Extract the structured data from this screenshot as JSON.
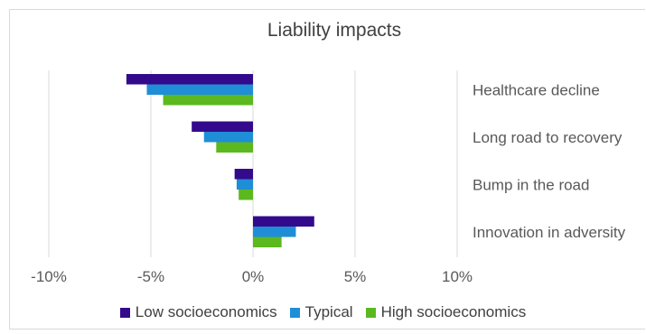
{
  "chart_data": {
    "type": "bar",
    "orientation": "horizontal",
    "title": "Liability impacts",
    "categories": [
      "Healthcare decline",
      "Long road to recovery",
      "Bump in the road",
      "Innovation in adversity"
    ],
    "series": [
      {
        "name": "Low socioeconomics",
        "color": "#330a8c",
        "values": [
          -6.2,
          -3.0,
          -0.9,
          3.0
        ]
      },
      {
        "name": "Typical",
        "color": "#1f8ed6",
        "values": [
          -5.2,
          -2.4,
          -0.8,
          2.1
        ]
      },
      {
        "name": "High socioeconomics",
        "color": "#5cb81f",
        "values": [
          -4.4,
          -1.8,
          -0.7,
          1.4
        ]
      }
    ],
    "xlim": [
      -10,
      10
    ],
    "xticks": [
      "-10%",
      "-5%",
      "0%",
      "5%",
      "10%"
    ],
    "grid": "vertical",
    "legend_position": "bottom"
  }
}
